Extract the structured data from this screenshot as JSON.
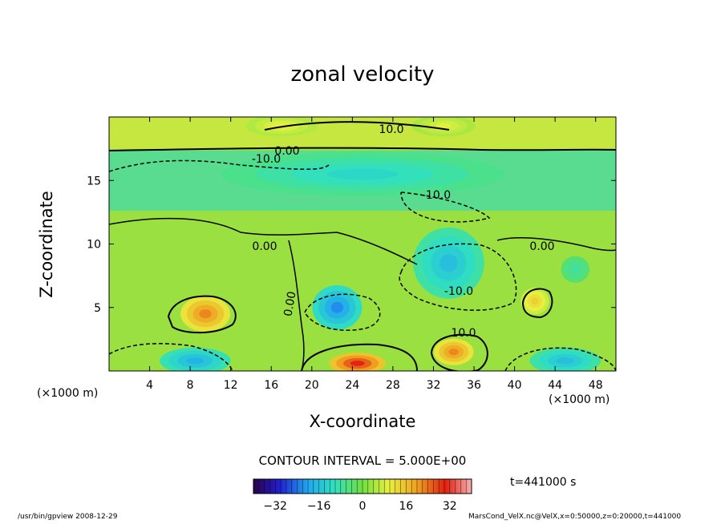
{
  "chart_data": {
    "type": "heatmap",
    "title": "zonal velocity",
    "xlabel": "X-coordinate",
    "ylabel": "Z-coordinate",
    "x_unit_label": "(×1000 m)",
    "y_unit_label": "(×1000 m)",
    "xlim": [
      0,
      50
    ],
    "ylim": [
      0,
      20
    ],
    "x_ticks": [
      4,
      8,
      12,
      16,
      20,
      24,
      28,
      32,
      36,
      40,
      44,
      48
    ],
    "y_ticks": [
      5,
      10,
      15
    ],
    "colorbar": {
      "range": [
        -40,
        40
      ],
      "ticks": [
        -32,
        -16,
        0,
        16,
        32
      ]
    },
    "contour_interval_label": "CONTOUR INTERVAL = 5.000E+00",
    "contour_labels": [
      "10.0",
      "0.00",
      "-10.0",
      "-10.0",
      "0.00",
      "0.00",
      "-10.0",
      "10.0",
      "0.00"
    ],
    "features": [
      {
        "x": 9.5,
        "z": 4.5,
        "value": 22,
        "width": 3.5,
        "height": 2.0
      },
      {
        "x": 24.5,
        "z": 0.6,
        "value": 30,
        "width": 4.0,
        "height": 1.2
      },
      {
        "x": 34,
        "z": 1.5,
        "value": 22,
        "width": 2.8,
        "height": 1.5
      },
      {
        "x": 42,
        "z": 5.5,
        "value": 14,
        "width": 2.0,
        "height": 1.5
      },
      {
        "x": 17,
        "z": 19.3,
        "value": 10,
        "width": 5.0,
        "height": 1.2
      },
      {
        "x": 33,
        "z": 19.3,
        "value": 9,
        "width": 4.5,
        "height": 1.2
      },
      {
        "x": 22.5,
        "z": 5.0,
        "value": -22,
        "width": 3.5,
        "height": 2.5
      },
      {
        "x": 33.5,
        "z": 8.5,
        "value": -16,
        "width": 5.0,
        "height": 4.0
      },
      {
        "x": 8.5,
        "z": 0.8,
        "value": -18,
        "width": 5.0,
        "height": 1.5
      },
      {
        "x": 45,
        "z": 0.8,
        "value": -16,
        "width": 5.0,
        "height": 1.5
      },
      {
        "x": 25,
        "z": 15.5,
        "value": -12,
        "width": 20,
        "height": 2.5
      },
      {
        "x": 46,
        "z": 8.0,
        "value": -8,
        "width": 2.0,
        "height": 1.5
      }
    ]
  },
  "time_label": "t=441000 s",
  "footer_left": "/usr/bin/gpview   2008-12-29",
  "footer_right": "MarsCond_VelX.nc@VelX,x=0:50000,z=0:20000,t=441000"
}
